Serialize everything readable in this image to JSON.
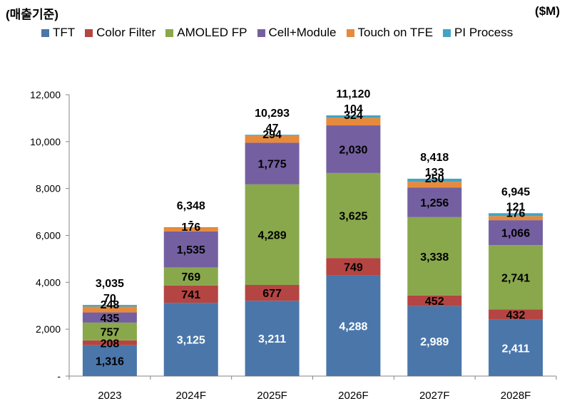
{
  "header": {
    "left_label": "(매출기준)",
    "right_label": "($M)"
  },
  "chart_data": {
    "type": "bar",
    "stacked": true,
    "title": "",
    "xlabel": "",
    "ylabel": "",
    "ylim": [
      0,
      12000
    ],
    "yticks": [
      0,
      2000,
      4000,
      6000,
      8000,
      10000,
      12000
    ],
    "ytick_labels": [
      "-",
      "2,000",
      "4,000",
      "6,000",
      "8,000",
      "10,000",
      "12,000"
    ],
    "legend_position": "top",
    "categories": [
      "2023",
      "2024F",
      "2025F",
      "2026F",
      "2027F",
      "2028F"
    ],
    "series": [
      {
        "name": "TFT",
        "color": "#4a76aa",
        "values": [
          1316,
          3125,
          3211,
          4288,
          2989,
          2411
        ],
        "labels": [
          "1,316",
          "3,125",
          "3,211",
          "4,288",
          "2,989",
          "2,411"
        ]
      },
      {
        "name": "Color Filter",
        "color": "#b54542",
        "values": [
          208,
          741,
          677,
          749,
          452,
          432
        ],
        "labels": [
          "208",
          "741",
          "677",
          "749",
          "452",
          "432"
        ]
      },
      {
        "name": "AMOLED FP",
        "color": "#89a84c",
        "values": [
          757,
          769,
          4289,
          3625,
          3338,
          2741
        ],
        "labels": [
          "757",
          "769",
          "4,289",
          "3,625",
          "3,338",
          "2,741"
        ]
      },
      {
        "name": "Cell+Module",
        "color": "#7460a0",
        "values": [
          435,
          1535,
          1775,
          2030,
          1256,
          1066
        ],
        "labels": [
          "435",
          "1,535",
          "1,775",
          "2,030",
          "1,256",
          "1,066"
        ]
      },
      {
        "name": "Touch on TFE",
        "color": "#e78a3c",
        "values": [
          248,
          176,
          294,
          324,
          250,
          176
        ],
        "labels": [
          "248",
          "176",
          "294",
          "324",
          "250",
          "176"
        ]
      },
      {
        "name": "PI Process",
        "color": "#40a5c4",
        "values": [
          70,
          2,
          47,
          104,
          133,
          121
        ],
        "labels": [
          "70",
          "-",
          "47",
          "104",
          "133",
          "121"
        ]
      }
    ],
    "totals": [
      3035,
      6348,
      10293,
      11120,
      8418,
      6945
    ],
    "total_labels": [
      "3,035",
      "6,348",
      "10,293",
      "11,120",
      "8,418",
      "6,945"
    ]
  }
}
